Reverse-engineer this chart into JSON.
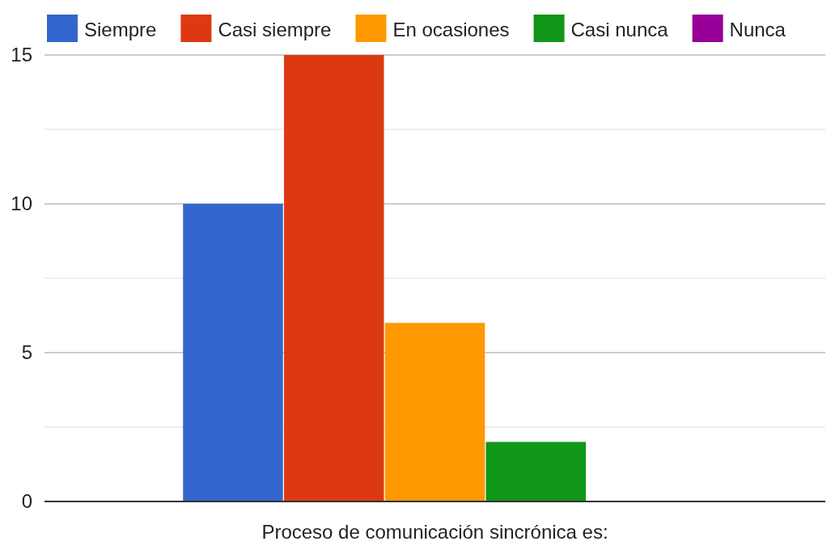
{
  "chart_data": {
    "type": "bar",
    "categories": [
      null
    ],
    "xlabel": "Proceso de comunicación sincrónica es:",
    "series": [
      {
        "name": "Siempre",
        "color": "#3366cc",
        "values": [
          10
        ]
      },
      {
        "name": "Casi siempre",
        "color": "#dc3912",
        "values": [
          15
        ]
      },
      {
        "name": "En ocasiones",
        "color": "#ff9900",
        "values": [
          6
        ]
      },
      {
        "name": "Casi nunca",
        "color": "#109618",
        "values": [
          2
        ]
      },
      {
        "name": "Nunca",
        "color": "#990099",
        "values": [
          0
        ]
      }
    ],
    "ylim": [
      0,
      15
    ],
    "yticks": [
      0,
      {
        "value": 2.5,
        "label": null
      },
      5,
      {
        "value": 7.5,
        "label": null
      },
      10,
      {
        "value": 12.5,
        "label": null
      },
      15
    ],
    "grid": "y",
    "legend": "top left"
  }
}
